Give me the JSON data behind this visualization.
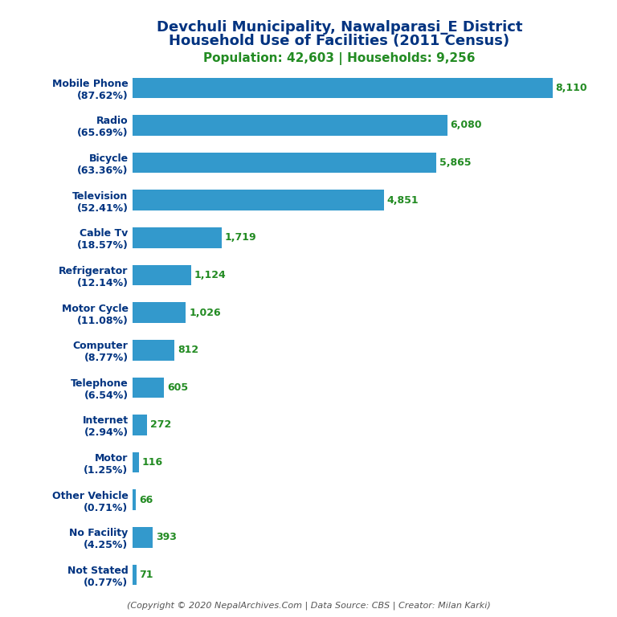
{
  "title_line1": "Devchuli Municipality, Nawalparasi_E District",
  "title_line2": "Household Use of Facilities (2011 Census)",
  "subtitle": "Population: 42,603 | Households: 9,256",
  "footer": "(Copyright © 2020 NepalArchives.Com | Data Source: CBS | Creator: Milan Karki)",
  "categories": [
    "Not Stated\n(0.77%)",
    "No Facility\n(4.25%)",
    "Other Vehicle\n(0.71%)",
    "Motor\n(1.25%)",
    "Internet\n(2.94%)",
    "Telephone\n(6.54%)",
    "Computer\n(8.77%)",
    "Motor Cycle\n(11.08%)",
    "Refrigerator\n(12.14%)",
    "Cable Tv\n(18.57%)",
    "Television\n(52.41%)",
    "Bicycle\n(63.36%)",
    "Radio\n(65.69%)",
    "Mobile Phone\n(87.62%)"
  ],
  "values": [
    71,
    393,
    66,
    116,
    272,
    605,
    812,
    1026,
    1124,
    1719,
    4851,
    5865,
    6080,
    8110
  ],
  "value_labels": [
    "71",
    "393",
    "66",
    "116",
    "272",
    "605",
    "812",
    "1,026",
    "1,124",
    "1,719",
    "4,851",
    "5,865",
    "6,080",
    "8,110"
  ],
  "bar_color": "#3399CC",
  "label_color": "#228B22",
  "title_color": "#003380",
  "subtitle_color": "#228B22",
  "footer_color": "#555555",
  "background_color": "#ffffff",
  "xlim": [
    0,
    9000
  ],
  "bar_height": 0.55,
  "label_fontsize": 9,
  "ytick_fontsize": 9,
  "title_fontsize": 13,
  "subtitle_fontsize": 11,
  "footer_fontsize": 8
}
